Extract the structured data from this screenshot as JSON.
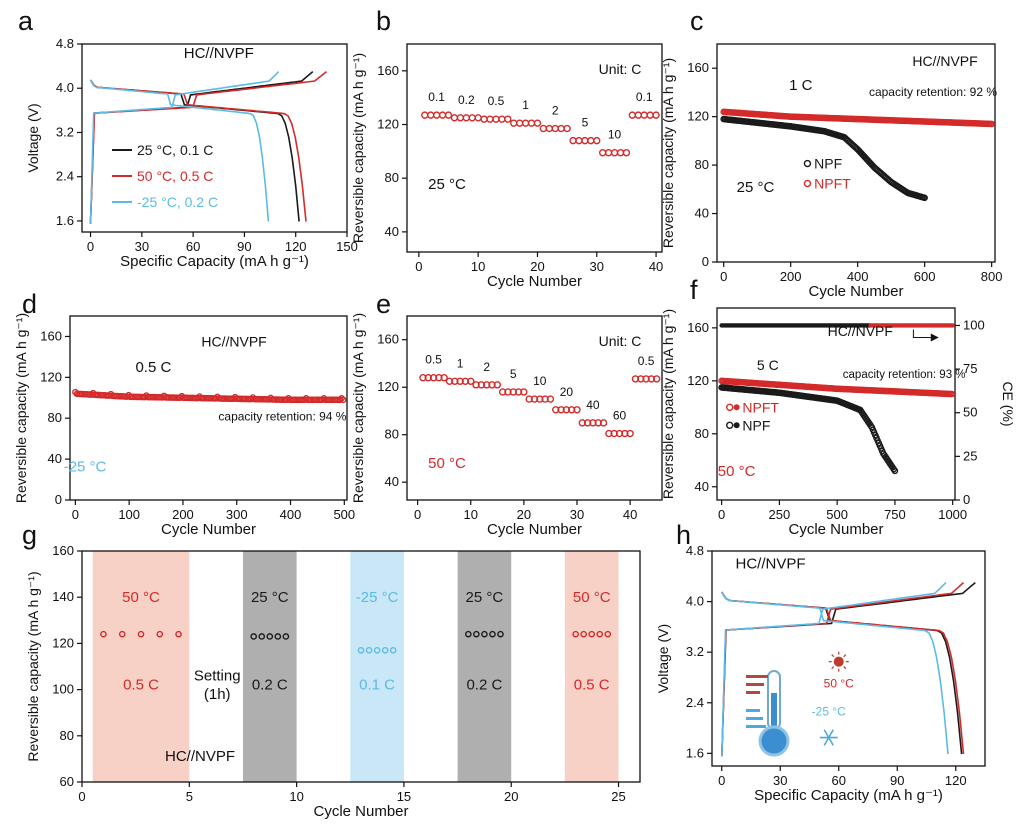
{
  "colors": {
    "black": "#1a1a1a",
    "red": "#d42a2a",
    "blue": "#5bbbe6",
    "pink_band": "#f6c8bc",
    "gray_band": "#a6a6a6",
    "blue_band": "#bfe3f4"
  },
  "chart_data": [
    {
      "panel": "a",
      "type": "line",
      "title": "HC//NVPF",
      "xlabel": "Specific Capacity (mA h g⁻¹)",
      "ylabel": "Voltage (V)",
      "xlim": [
        -5,
        150
      ],
      "ylim": [
        1.4,
        4.8
      ],
      "xticks": [
        "0",
        "30",
        "60",
        "90",
        "120",
        "150"
      ],
      "yticks": [
        "1.6",
        "2.4",
        "3.2",
        "4.0",
        "4.8"
      ],
      "legend": [
        "25 °C, 0.1 C",
        "50 °C, 0.5 C",
        "-25 °C, 0.2 C"
      ],
      "series": [
        {
          "name": "25 °C, 0.1 C",
          "color": "black",
          "charge_end": 130,
          "discharge_end": 122
        },
        {
          "name": "50 °C, 0.5 C",
          "color": "red",
          "charge_end": 138,
          "discharge_end": 126
        },
        {
          "name": "-25 °C, 0.2 C",
          "color": "blue",
          "charge_end": 110,
          "discharge_end": 104
        }
      ]
    },
    {
      "panel": "b",
      "type": "scatter",
      "annotation": "Unit: C",
      "temperature": "25 °C",
      "xlabel": "Cycle Number",
      "ylabel": "Reversible capacity (mA h g⁻¹)",
      "xlim": [
        -2,
        41
      ],
      "ylim": [
        25,
        180
      ],
      "xticks": [
        "0",
        "10",
        "20",
        "30",
        "40"
      ],
      "yticks": [
        "40",
        "80",
        "120",
        "160"
      ],
      "rates": [
        "0.1",
        "0.2",
        "0.5",
        "1",
        "2",
        "5",
        "10",
        "0.1"
      ],
      "capacities": [
        127,
        125,
        124,
        121,
        117,
        108,
        99,
        127
      ],
      "points_per_rate": 5
    },
    {
      "panel": "c",
      "type": "scatter",
      "title": "HC//NVPF",
      "rate": "1 C",
      "temperature": "25 °C",
      "annotation": "capacity retention: 92 %",
      "xlabel": "Cycle Number",
      "ylabel": "Reversible capacity (mA h g⁻¹)",
      "xlim": [
        -20,
        810
      ],
      "ylim": [
        0,
        180
      ],
      "xticks": [
        "0",
        "200",
        "400",
        "600",
        "800"
      ],
      "yticks": [
        "0",
        "40",
        "80",
        "120",
        "160"
      ],
      "legend": [
        "NPF",
        "NPFT"
      ],
      "series": [
        {
          "name": "NPFT",
          "color": "red",
          "x": [
            0,
            200,
            400,
            600,
            800
          ],
          "y": [
            124,
            120,
            118,
            116,
            114
          ]
        },
        {
          "name": "NPF",
          "color": "black",
          "x": [
            0,
            100,
            200,
            300,
            360,
            400,
            450,
            500,
            550,
            600
          ],
          "y": [
            118,
            115,
            112,
            108,
            103,
            93,
            78,
            66,
            57,
            53
          ]
        }
      ]
    },
    {
      "panel": "d",
      "type": "scatter",
      "title": "HC//NVPF",
      "rate": "0.5 C",
      "temperature": "-25 °C",
      "annotation": "capacity retention: 94 %",
      "xlabel": "Cycle Number",
      "ylabel": "Reversible capacity (mA h g⁻¹)",
      "xlim": [
        -10,
        505
      ],
      "ylim": [
        0,
        180
      ],
      "xticks": [
        "0",
        "100",
        "200",
        "300",
        "400",
        "500"
      ],
      "yticks": [
        "0",
        "40",
        "80",
        "120",
        "160"
      ],
      "series": [
        {
          "name": "NPFT",
          "color": "red",
          "x": [
            0,
            100,
            200,
            300,
            400,
            500
          ],
          "y": [
            104,
            101,
            100,
            99,
            98,
            98
          ]
        }
      ]
    },
    {
      "panel": "e",
      "type": "scatter",
      "annotation": "Unit: C",
      "temperature": "50 °C",
      "xlabel": "Cycle Number",
      "ylabel": "Reversible capacity (mA h g⁻¹)",
      "xlim": [
        -2,
        46
      ],
      "ylim": [
        25,
        180
      ],
      "xticks": [
        "0",
        "10",
        "20",
        "30",
        "40"
      ],
      "yticks": [
        "40",
        "80",
        "120",
        "160"
      ],
      "rates": [
        "0.5",
        "1",
        "2",
        "5",
        "10",
        "20",
        "40",
        "60",
        "0.5"
      ],
      "capacities": [
        128,
        125,
        122,
        116,
        110,
        101,
        90,
        81,
        127
      ],
      "points_per_rate": 5
    },
    {
      "panel": "f",
      "type": "scatter",
      "title": "HC//NVPF",
      "rate": "5 C",
      "temperature": "50 °C",
      "annotation": "capacity retention: 93 %",
      "xlabel": "Cycle Number",
      "ylabel": "Reversible capacity (mA h g⁻¹)",
      "y2label": "CE (%)",
      "xlim": [
        -20,
        1010
      ],
      "ylim": [
        30,
        175
      ],
      "y2lim": [
        0,
        110
      ],
      "xticks": [
        "0",
        "250",
        "500",
        "750",
        "1000"
      ],
      "yticks": [
        "40",
        "80",
        "120",
        "160"
      ],
      "y2ticks": [
        "0",
        "25",
        "50",
        "75",
        "100"
      ],
      "legend": [
        "NPFT",
        "NPF"
      ],
      "series": [
        {
          "name": "NPFT",
          "color": "red",
          "x": [
            0,
            250,
            500,
            750,
            1000
          ],
          "y": [
            120,
            117,
            114,
            112,
            110
          ]
        },
        {
          "name": "NPF",
          "color": "black",
          "x": [
            0,
            250,
            500,
            600,
            650,
            700,
            750
          ],
          "y": [
            115,
            111,
            105,
            98,
            85,
            65,
            52
          ]
        },
        {
          "name": "CE",
          "axis": "right",
          "value": 100
        }
      ]
    },
    {
      "panel": "g",
      "type": "scatter",
      "title": "HC//NVPF",
      "xlabel": "Cycle Number",
      "ylabel": "Reversible capacity (mA h g⁻¹)",
      "xlim": [
        0,
        26
      ],
      "ylim": [
        60,
        160
      ],
      "xticks": [
        "0",
        "5",
        "10",
        "15",
        "20",
        "25"
      ],
      "yticks": [
        "60",
        "80",
        "100",
        "120",
        "140",
        "160"
      ],
      "setting_label": "Setting",
      "setting_time": "(1h)",
      "segments": [
        {
          "temp": "50 °C",
          "rate": "0.5 C",
          "x0": 0.5,
          "x1": 5,
          "capacity": 124,
          "color": "red",
          "band": "pink_band"
        },
        {
          "temp": "25 °C",
          "rate": "0.2 C",
          "x0": 7.5,
          "x1": 10,
          "capacity": 123,
          "color": "black",
          "band": "gray_band"
        },
        {
          "temp": "-25 °C",
          "rate": "0.1 C",
          "x0": 12.5,
          "x1": 15,
          "capacity": 117,
          "color": "blue",
          "band": "blue_band"
        },
        {
          "temp": "25 °C",
          "rate": "0.2 C",
          "x0": 17.5,
          "x1": 20,
          "capacity": 124,
          "color": "black",
          "band": "gray_band"
        },
        {
          "temp": "50 °C",
          "rate": "0.5 C",
          "x0": 22.5,
          "x1": 25,
          "capacity": 124,
          "color": "red",
          "band": "pink_band"
        }
      ]
    },
    {
      "panel": "h",
      "type": "line",
      "title": "HC//NVPF",
      "xlabel": "Specific Capacity (mA h g⁻¹)",
      "ylabel": "Voltage (V)",
      "xlim": [
        -5,
        135
      ],
      "ylim": [
        1.4,
        4.8
      ],
      "xticks": [
        "0",
        "30",
        "60",
        "90",
        "120"
      ],
      "yticks": [
        "1.6",
        "2.4",
        "3.2",
        "4.0",
        "4.8"
      ],
      "hot_label": "50 °C",
      "cold_label": "-25 °C",
      "series": [
        {
          "name": "25 °C",
          "color": "black",
          "charge_end": 130,
          "discharge_end": 123
        },
        {
          "name": "50 °C",
          "color": "red",
          "charge_end": 124,
          "discharge_end": 124
        },
        {
          "name": "-25 °C",
          "color": "blue",
          "charge_end": 115,
          "discharge_end": 116
        }
      ]
    }
  ]
}
